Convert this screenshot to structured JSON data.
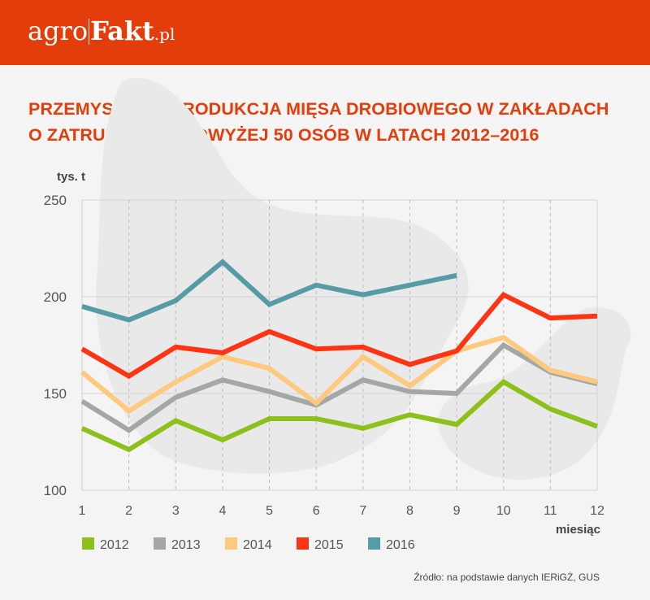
{
  "header": {
    "logo_part1": "agro",
    "logo_part2": "Fakt",
    "logo_part3": ".pl"
  },
  "source": "Źródło: na podstawie danych IERiGŻ, GUS",
  "chart_data": {
    "type": "line",
    "title_lines": [
      "PRZEMYSŁOWA PRODUKCJA MIĘSA DROBIOWEGO W ZAKŁADACH",
      "O ZATRUDNIENIU POWYŻEJ 50 OSÓB W LATACH 2012–2016"
    ],
    "ylabel": "tys. t",
    "xlabel": "miesiąc",
    "x": [
      1,
      2,
      3,
      4,
      5,
      6,
      7,
      8,
      9,
      10,
      11,
      12
    ],
    "ylim": [
      100,
      250
    ],
    "yticks": [
      100,
      150,
      200,
      250
    ],
    "grid": true,
    "legend_position": "bottom-left",
    "series": [
      {
        "name": "2012",
        "color": "#8cc01a",
        "values": [
          132,
          121,
          136,
          126,
          137,
          137,
          132,
          139,
          134,
          156,
          142,
          133
        ]
      },
      {
        "name": "2013",
        "color": "#a3a8a4",
        "values": [
          146,
          131,
          148,
          157,
          151,
          144,
          157,
          151,
          150,
          175,
          161,
          155
        ]
      },
      {
        "name": "2014",
        "color": "#fcc97e",
        "values": [
          161,
          141,
          156,
          169,
          163,
          145,
          169,
          154,
          172,
          179,
          162,
          156
        ]
      },
      {
        "name": "2015",
        "color": "#fc3413",
        "values": [
          173,
          159,
          174,
          171,
          182,
          173,
          174,
          165,
          172,
          201,
          189,
          190
        ]
      },
      {
        "name": "2016",
        "color": "#569ca5",
        "values": [
          195,
          188,
          198,
          218,
          196,
          206,
          201,
          206,
          211,
          null,
          null,
          null
        ]
      }
    ]
  }
}
